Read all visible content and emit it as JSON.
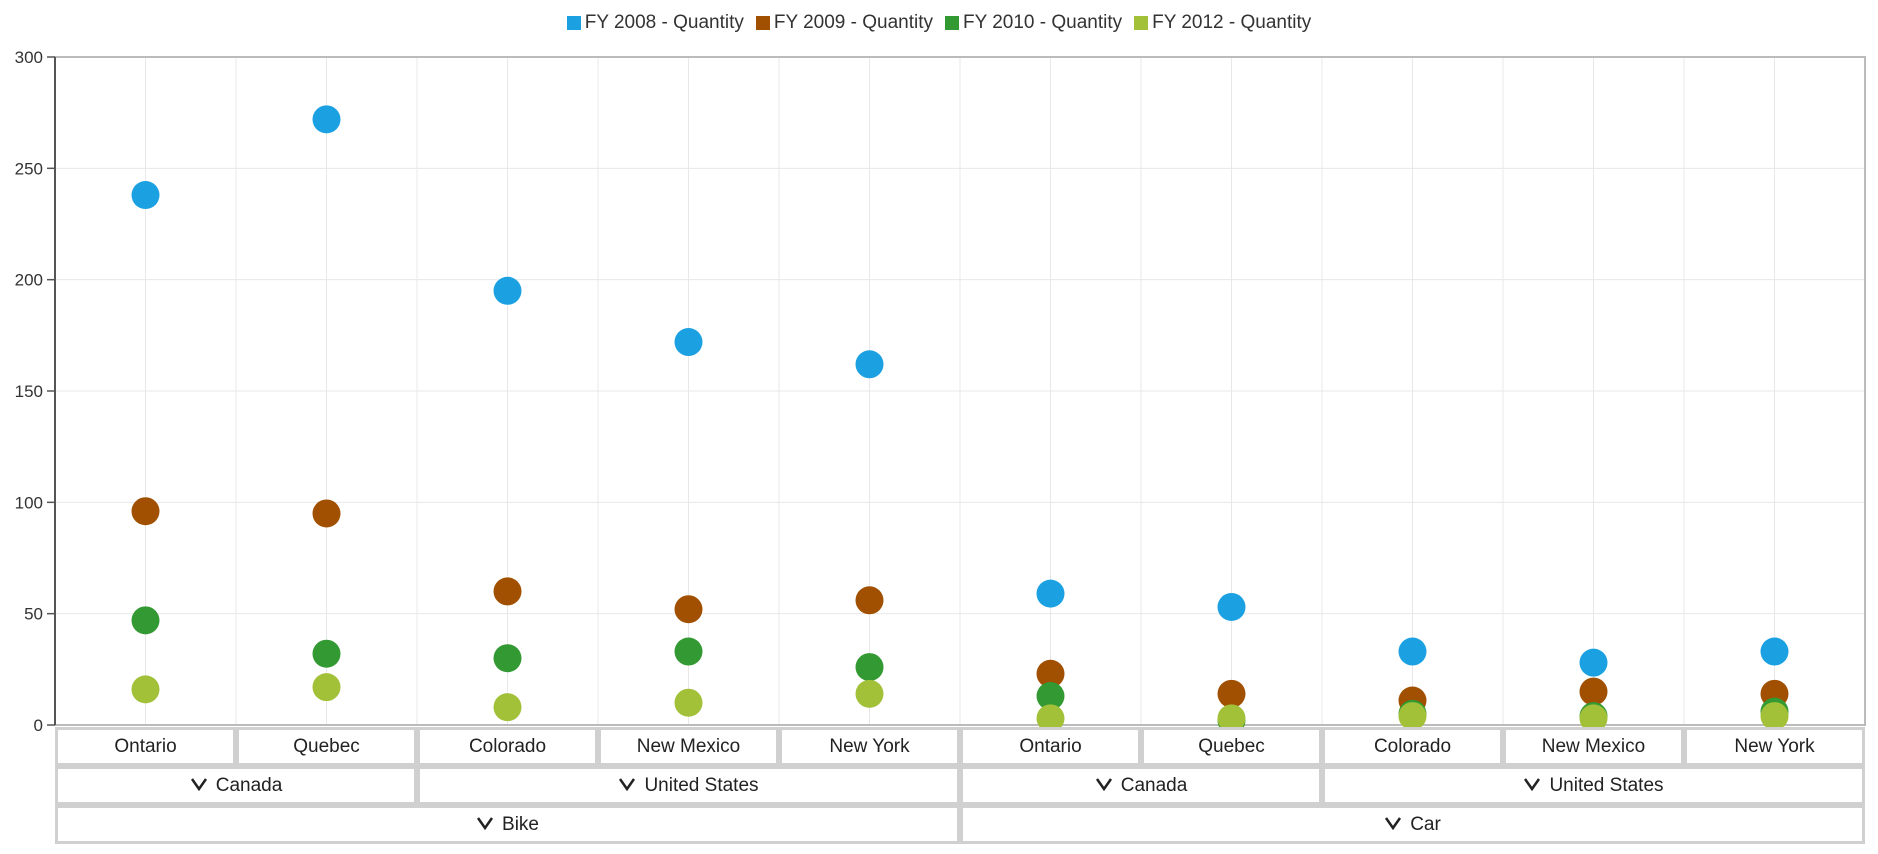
{
  "colors": {
    "fy2008": "#1ba1e2",
    "fy2009": "#a05000",
    "fy2010": "#339933",
    "fy2012": "#a2c139",
    "grid": "#e8e8e8",
    "axis": "#bbbbbb"
  },
  "legend": [
    {
      "label": "FY 2008 - Quantity",
      "color_key": "fy2008"
    },
    {
      "label": "FY 2009 - Quantity",
      "color_key": "fy2009"
    },
    {
      "label": "FY 2010 - Quantity",
      "color_key": "fy2010"
    },
    {
      "label": "FY 2012 - Quantity",
      "color_key": "fy2012"
    }
  ],
  "axis_groups": {
    "level1": [
      "Ontario",
      "Quebec",
      "Colorado",
      "New Mexico",
      "New York",
      "Ontario",
      "Quebec",
      "Colorado",
      "New Mexico",
      "New York"
    ],
    "level2": [
      {
        "label": "Canada",
        "span": 2
      },
      {
        "label": "United States",
        "span": 3
      },
      {
        "label": "Canada",
        "span": 2
      },
      {
        "label": "United States",
        "span": 3
      }
    ],
    "level3": [
      {
        "label": "Bike",
        "span": 5
      },
      {
        "label": "Car",
        "span": 5
      }
    ],
    "chevron_icon": "chevron-down-icon"
  },
  "chart_data": {
    "type": "scatter",
    "categories": [
      "Ontario",
      "Quebec",
      "Colorado",
      "New Mexico",
      "New York",
      "Ontario",
      "Quebec",
      "Colorado",
      "New Mexico",
      "New York"
    ],
    "ylim": [
      0,
      300
    ],
    "yticks": [
      0,
      50,
      100,
      150,
      200,
      250,
      300
    ],
    "grid": true,
    "legend_position": "top-center",
    "series": [
      {
        "name": "FY 2008 - Quantity",
        "color_key": "fy2008",
        "values": [
          238,
          272,
          195,
          172,
          162,
          59,
          53,
          33,
          28,
          33
        ]
      },
      {
        "name": "FY 2009 - Quantity",
        "color_key": "fy2009",
        "values": [
          96,
          95,
          60,
          52,
          56,
          23,
          14,
          11,
          15,
          14
        ]
      },
      {
        "name": "FY 2010 - Quantity",
        "color_key": "fy2010",
        "values": [
          47,
          32,
          30,
          33,
          26,
          13,
          2,
          5,
          4,
          6
        ]
      },
      {
        "name": "FY 2012 - Quantity",
        "color_key": "fy2012",
        "values": [
          16,
          17,
          8,
          10,
          14,
          3,
          3,
          4,
          3,
          4
        ]
      }
    ]
  }
}
